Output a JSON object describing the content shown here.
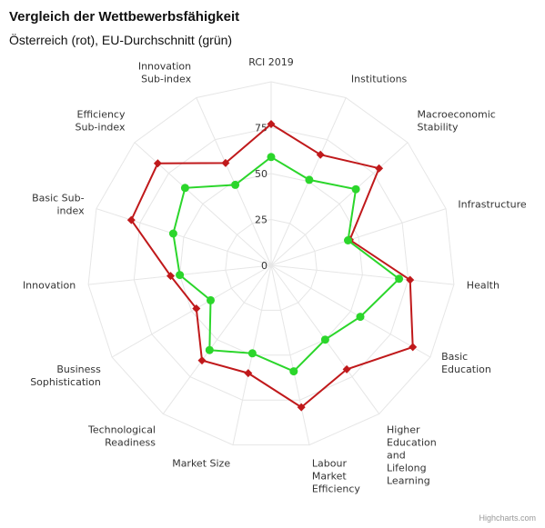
{
  "header": {
    "title": "Vergleich der Wettbewerbsfähigkeit",
    "subtitle": "Österreich (rot), EU-Durchschnitt (grün)"
  },
  "credits": "Highcharts.com",
  "colors": {
    "series_red": "#c0191b",
    "series_green": "#2bd62b",
    "grid": "#e6e6e6"
  },
  "chart_data": {
    "type": "radar",
    "axis_labels": [
      [
        "RCI 2019"
      ],
      [
        "Institutions"
      ],
      [
        "Macroeconomic",
        "Stability"
      ],
      [
        "Infrastructure"
      ],
      [
        "Health"
      ],
      [
        "Basic",
        "Education"
      ],
      [
        "Higher",
        "Education",
        "and",
        "Lifelong",
        "Learning"
      ],
      [
        "Labour",
        "Market",
        "Efficiency"
      ],
      [
        "Market Size"
      ],
      [
        "Technological",
        "Readiness"
      ],
      [
        "Business",
        "Sophistication"
      ],
      [
        "Innovation"
      ],
      [
        "Basic Sub-",
        "index"
      ],
      [
        "Efficiency",
        "Sub-index"
      ],
      [
        "Innovation",
        "Sub-index"
      ]
    ],
    "radial_ticks": [
      0,
      25,
      50,
      75
    ],
    "r_range": [
      0,
      100
    ],
    "grid_rings": [
      0,
      25,
      50,
      75,
      100
    ],
    "series": [
      {
        "color": "#c0191b",
        "marker": "diamond",
        "values": [
          77,
          66,
          79,
          45,
          76,
          89,
          70,
          79,
          60,
          64,
          47,
          55,
          80,
          83,
          61
        ]
      },
      {
        "color": "#2bd62b",
        "marker": "circle",
        "values": [
          59,
          51,
          62,
          44,
          70,
          56,
          50,
          59,
          49,
          57,
          38,
          50,
          56,
          63,
          48
        ]
      }
    ]
  }
}
